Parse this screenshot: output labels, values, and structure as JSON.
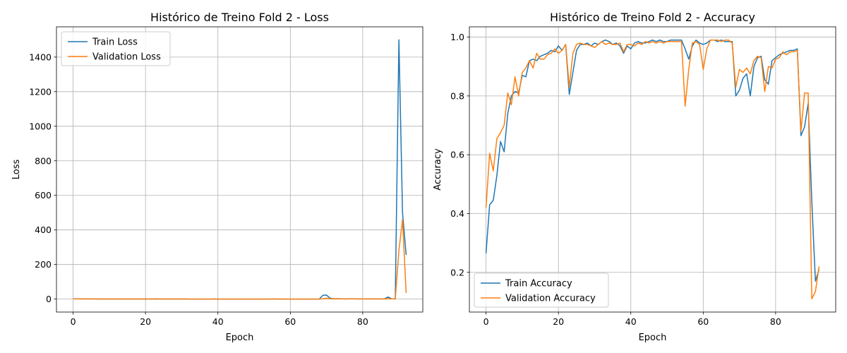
{
  "chart_data": [
    {
      "type": "line",
      "title": "Histórico de Treino Fold 2 - Loss",
      "xlabel": "Epoch",
      "ylabel": "Loss",
      "xlim": [
        -4.6,
        96.6
      ],
      "ylim": [
        -75,
        1575
      ],
      "xticks": [
        0,
        20,
        40,
        60,
        80
      ],
      "yticks": [
        0,
        200,
        400,
        600,
        800,
        1000,
        1200,
        1400
      ],
      "grid": true,
      "legend_position": "top-left",
      "series": [
        {
          "name": "Train Loss",
          "color": "#1f77b4",
          "x": [
            0,
            1,
            2,
            3,
            4,
            5,
            6,
            7,
            8,
            9,
            10,
            11,
            12,
            13,
            14,
            15,
            16,
            17,
            18,
            19,
            20,
            21,
            22,
            23,
            24,
            25,
            26,
            27,
            28,
            29,
            30,
            31,
            32,
            33,
            34,
            35,
            36,
            37,
            38,
            39,
            40,
            41,
            42,
            43,
            44,
            45,
            46,
            47,
            48,
            49,
            50,
            51,
            52,
            53,
            54,
            55,
            56,
            57,
            58,
            59,
            60,
            61,
            62,
            63,
            64,
            65,
            66,
            67,
            68,
            69,
            70,
            71,
            72,
            73,
            74,
            75,
            76,
            77,
            78,
            79,
            80,
            81,
            82,
            83,
            84,
            85,
            86,
            87,
            88,
            89,
            90,
            91,
            92
          ],
          "y": [
            1.8,
            1.5,
            1.2,
            1.1,
            1.0,
            1.0,
            0.9,
            0.8,
            0.8,
            0.7,
            0.7,
            0.6,
            0.6,
            0.6,
            0.5,
            0.5,
            0.5,
            0.5,
            0.4,
            0.4,
            0.4,
            0.4,
            0.4,
            1.0,
            0.8,
            0.5,
            0.4,
            0.3,
            0.3,
            0.3,
            0.3,
            0.3,
            0.2,
            0.2,
            0.2,
            0.2,
            0.2,
            0.2,
            0.2,
            0.3,
            0.2,
            0.2,
            0.2,
            0.2,
            0.2,
            0.2,
            0.2,
            0.2,
            0.2,
            0.2,
            0.2,
            0.2,
            0.2,
            0.2,
            0.2,
            0.6,
            0.4,
            0.2,
            0.2,
            0.2,
            0.2,
            0.2,
            0.2,
            0.2,
            0.2,
            0.2,
            0.2,
            0.2,
            0.2,
            22,
            23,
            5,
            2,
            2,
            2,
            1,
            1,
            2,
            1,
            1,
            1,
            1,
            1,
            1,
            1,
            1,
            1,
            12,
            2,
            1,
            1500,
            500,
            255
          ]
        },
        {
          "name": "Validation Loss",
          "color": "#ff7f0e",
          "x": [
            0,
            1,
            2,
            3,
            4,
            5,
            6,
            7,
            8,
            9,
            10,
            11,
            12,
            13,
            14,
            15,
            16,
            17,
            18,
            19,
            20,
            21,
            22,
            23,
            24,
            25,
            26,
            27,
            28,
            29,
            30,
            31,
            32,
            33,
            34,
            35,
            36,
            37,
            38,
            39,
            40,
            41,
            42,
            43,
            44,
            45,
            46,
            47,
            48,
            49,
            50,
            51,
            52,
            53,
            54,
            55,
            56,
            57,
            58,
            59,
            60,
            61,
            62,
            63,
            64,
            65,
            66,
            67,
            68,
            69,
            70,
            71,
            72,
            73,
            74,
            75,
            76,
            77,
            78,
            79,
            80,
            81,
            82,
            83,
            84,
            85,
            86,
            87,
            88,
            89,
            90,
            91,
            92
          ],
          "y": [
            1.2,
            1.3,
            1.2,
            1.0,
            0.9,
            0.9,
            0.8,
            0.8,
            0.7,
            0.7,
            0.6,
            0.6,
            0.6,
            0.6,
            0.5,
            0.5,
            0.5,
            0.5,
            0.4,
            0.4,
            0.4,
            0.4,
            0.4,
            0.8,
            0.6,
            0.4,
            0.3,
            0.3,
            0.3,
            0.3,
            0.3,
            0.3,
            0.2,
            0.2,
            0.2,
            0.2,
            0.2,
            0.2,
            0.2,
            0.3,
            0.2,
            0.2,
            0.2,
            0.2,
            0.2,
            0.2,
            0.2,
            0.2,
            0.2,
            0.2,
            0.2,
            0.2,
            0.2,
            0.2,
            0.2,
            0.8,
            0.4,
            0.2,
            0.2,
            0.3,
            0.2,
            0.2,
            0.2,
            0.2,
            0.2,
            0.2,
            0.2,
            0.2,
            0.2,
            2,
            5,
            2,
            1,
            1,
            1,
            1,
            1,
            1,
            1,
            1,
            1,
            1,
            1,
            1,
            1,
            1,
            1,
            2,
            1,
            1,
            280,
            460,
            35
          ]
        }
      ]
    },
    {
      "type": "line",
      "title": "Histórico de Treino Fold 2 - Accuracy",
      "xlabel": "Epoch",
      "ylabel": "Accuracy",
      "xlim": [
        -4.6,
        96.6
      ],
      "ylim": [
        0.065,
        1.035
      ],
      "xticks": [
        0,
        20,
        40,
        60,
        80
      ],
      "yticks": [
        0.2,
        0.4,
        0.6,
        0.8,
        1.0
      ],
      "grid": true,
      "legend_position": "bottom-left",
      "series": [
        {
          "name": "Train Accuracy",
          "color": "#1f77b4",
          "x": [
            0,
            1,
            2,
            3,
            4,
            5,
            6,
            7,
            8,
            9,
            10,
            11,
            12,
            13,
            14,
            15,
            16,
            17,
            18,
            19,
            20,
            21,
            22,
            23,
            24,
            25,
            26,
            27,
            28,
            29,
            30,
            31,
            32,
            33,
            34,
            35,
            36,
            37,
            38,
            39,
            40,
            41,
            42,
            43,
            44,
            45,
            46,
            47,
            48,
            49,
            50,
            51,
            52,
            53,
            54,
            55,
            56,
            57,
            58,
            59,
            60,
            61,
            62,
            63,
            64,
            65,
            66,
            67,
            68,
            69,
            70,
            71,
            72,
            73,
            74,
            75,
            76,
            77,
            78,
            79,
            80,
            81,
            82,
            83,
            84,
            85,
            86,
            87,
            88,
            89,
            90,
            91,
            92
          ],
          "y": [
            0.265,
            0.43,
            0.445,
            0.53,
            0.645,
            0.61,
            0.74,
            0.8,
            0.815,
            0.81,
            0.87,
            0.865,
            0.92,
            0.925,
            0.92,
            0.935,
            0.94,
            0.945,
            0.955,
            0.95,
            0.97,
            0.955,
            0.975,
            0.805,
            0.88,
            0.955,
            0.975,
            0.975,
            0.98,
            0.97,
            0.98,
            0.975,
            0.985,
            0.99,
            0.985,
            0.975,
            0.98,
            0.97,
            0.945,
            0.97,
            0.96,
            0.98,
            0.985,
            0.98,
            0.98,
            0.985,
            0.99,
            0.985,
            0.99,
            0.985,
            0.985,
            0.99,
            0.99,
            0.99,
            0.99,
            0.96,
            0.925,
            0.97,
            0.99,
            0.98,
            0.975,
            0.98,
            0.99,
            0.99,
            0.985,
            0.99,
            0.985,
            0.985,
            0.985,
            0.8,
            0.82,
            0.86,
            0.875,
            0.8,
            0.9,
            0.93,
            0.935,
            0.855,
            0.84,
            0.92,
            0.93,
            0.94,
            0.945,
            0.95,
            0.955,
            0.955,
            0.96,
            0.665,
            0.695,
            0.775,
            0.44,
            0.17,
            0.21
          ]
        },
        {
          "name": "Validation Accuracy",
          "color": "#ff7f0e",
          "x": [
            0,
            1,
            2,
            3,
            4,
            5,
            6,
            7,
            8,
            9,
            10,
            11,
            12,
            13,
            14,
            15,
            16,
            17,
            18,
            19,
            20,
            21,
            22,
            23,
            24,
            25,
            26,
            27,
            28,
            29,
            30,
            31,
            32,
            33,
            34,
            35,
            36,
            37,
            38,
            39,
            40,
            41,
            42,
            43,
            44,
            45,
            46,
            47,
            48,
            49,
            50,
            51,
            52,
            53,
            54,
            55,
            56,
            57,
            58,
            59,
            60,
            61,
            62,
            63,
            64,
            65,
            66,
            67,
            68,
            69,
            70,
            71,
            72,
            73,
            74,
            75,
            76,
            77,
            78,
            79,
            80,
            81,
            82,
            83,
            84,
            85,
            86,
            87,
            88,
            89,
            90,
            91,
            92
          ],
          "y": [
            0.42,
            0.605,
            0.545,
            0.655,
            0.675,
            0.7,
            0.81,
            0.77,
            0.865,
            0.8,
            0.88,
            0.895,
            0.92,
            0.895,
            0.945,
            0.925,
            0.925,
            0.94,
            0.945,
            0.96,
            0.945,
            0.955,
            0.975,
            0.83,
            0.945,
            0.975,
            0.98,
            0.975,
            0.975,
            0.97,
            0.965,
            0.975,
            0.985,
            0.975,
            0.98,
            0.975,
            0.975,
            0.98,
            0.95,
            0.975,
            0.975,
            0.97,
            0.98,
            0.975,
            0.985,
            0.98,
            0.985,
            0.98,
            0.985,
            0.98,
            0.985,
            0.985,
            0.985,
            0.985,
            0.985,
            0.765,
            0.89,
            0.98,
            0.985,
            0.975,
            0.89,
            0.96,
            0.99,
            0.99,
            0.99,
            0.985,
            0.99,
            0.99,
            0.98,
            0.83,
            0.89,
            0.88,
            0.895,
            0.875,
            0.92,
            0.935,
            0.93,
            0.815,
            0.9,
            0.895,
            0.925,
            0.93,
            0.95,
            0.94,
            0.95,
            0.95,
            0.955,
            0.68,
            0.81,
            0.81,
            0.11,
            0.135,
            0.22
          ]
        }
      ]
    }
  ]
}
